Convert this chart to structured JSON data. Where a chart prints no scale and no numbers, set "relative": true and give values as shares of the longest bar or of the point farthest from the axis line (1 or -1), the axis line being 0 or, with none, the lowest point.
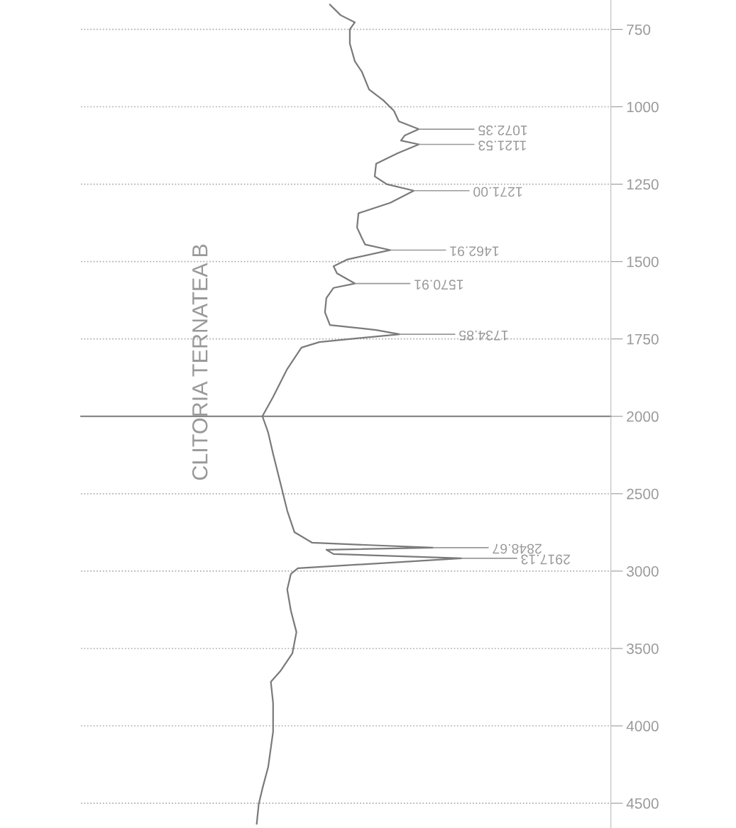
{
  "chart_data": [
    {
      "type": "line",
      "orientation": "horizontal",
      "relative": true,
      "title": "CLITORIA TERNATEA B",
      "x": [
        670,
        704,
        727,
        750,
        796,
        853,
        887,
        944,
        979,
        1013,
        1047,
        1072.35,
        1093,
        1109,
        1121.53,
        1150,
        1184,
        1225,
        1250,
        1271.0,
        1310,
        1344,
        1390,
        1424,
        1445,
        1462.91,
        1493,
        1515,
        1538,
        1570.91,
        1585,
        1618,
        1664,
        1705,
        1721,
        1734.85,
        1760,
        1778,
        1847,
        1938,
        2000
      ],
      "series": [
        {
          "color": "#7a7a7a",
          "values": [
            0.432,
            0.5,
            0.591,
            0.559,
            0.559,
            0.591,
            0.636,
            0.682,
            0.773,
            0.841,
            0.872,
            1,
            0.909,
            0.886,
            1,
            0.864,
            0.727,
            0.718,
            0.795,
            0.968,
            0.818,
            0.614,
            0.605,
            0.636,
            0.657,
            0.818,
            0.545,
            0.455,
            0.477,
            0.591,
            0.455,
            0.409,
            0.4,
            0.432,
            0.727,
            0.877,
            0.364,
            0.25,
            0.159,
            0.068,
            0
          ]
        }
      ],
      "ylim": [
        2000,
        655
      ],
      "yticks": [
        750,
        1000,
        1250,
        1500,
        1750,
        2000
      ],
      "grid": "y",
      "ref_lines": [
        {
          "axis": "y",
          "value": 2000,
          "color": "#7a7a7a"
        }
      ],
      "annotations": [
        {
          "text": "1072.35",
          "y": 1072.35,
          "x": 1
        },
        {
          "text": "1121.53",
          "y": 1121.53,
          "x": 1
        },
        {
          "text": "1271.00",
          "y": 1271.0,
          "x": 0.968
        },
        {
          "text": "1462.91",
          "y": 1462.91,
          "x": 0.818
        },
        {
          "text": "1570.91",
          "y": 1570.91,
          "x": 0.591
        },
        {
          "text": "1734.85",
          "y": 1734.85,
          "x": 0.877
        }
      ]
    },
    {
      "type": "line",
      "orientation": "horizontal",
      "relative": true,
      "x": [
        2000,
        2105,
        2243,
        2427,
        2610,
        2748,
        2817,
        2848.67,
        2862,
        2890,
        2917.13,
        2982,
        3018,
        3119,
        3257,
        3394,
        3532,
        3647,
        3716,
        3853,
        4037,
        4266,
        4404,
        4505,
        4633
      ],
      "series": [
        {
          "color": "#7a7a7a",
          "values": [
            0.028,
            0.056,
            0.08,
            0.115,
            0.149,
            0.184,
            0.271,
            0.861,
            0.34,
            0.375,
            1,
            0.201,
            0.167,
            0.149,
            0.167,
            0.194,
            0.174,
            0.115,
            0.069,
            0.08,
            0.08,
            0.056,
            0.028,
            0.01,
            0
          ]
        }
      ],
      "ylim": [
        4660,
        2000
      ],
      "yticks": [
        2500,
        3000,
        3500,
        4000,
        4500
      ],
      "grid": "y",
      "annotations": [
        {
          "text": "2848.67",
          "y": 2848.67,
          "x": 0.861
        },
        {
          "text": "2917.13",
          "y": 2917.13,
          "x": 1
        }
      ]
    }
  ]
}
